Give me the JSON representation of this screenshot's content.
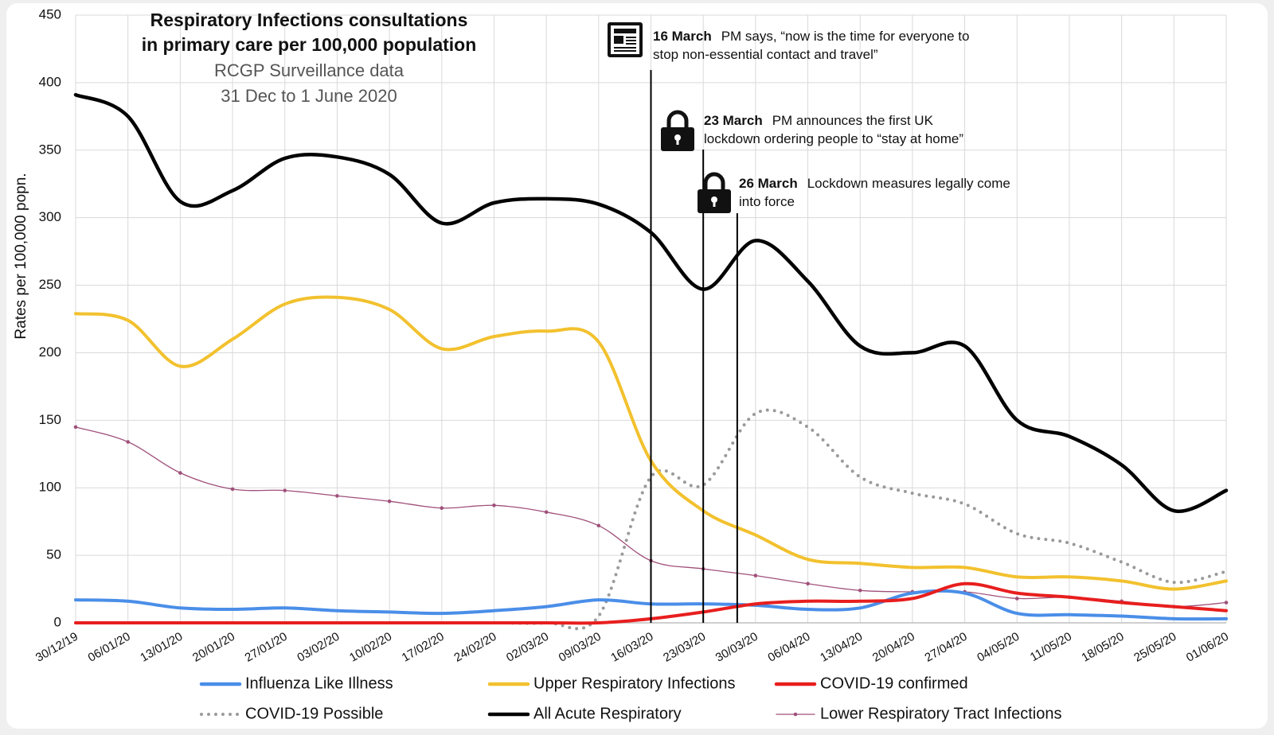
{
  "chart_data": {
    "type": "line",
    "title": "Respiratory Infections consultations",
    "title_line2": "in primary care per 100,000 population",
    "subtitle": "RCGP Surveillance data",
    "subtitle_line2": "31 Dec to 1 June 2020",
    "ylabel": "Rates per 100,000 popn.",
    "xlabel": "",
    "ylim": [
      0,
      450
    ],
    "yticks": [
      "0",
      "50",
      "100",
      "150",
      "200",
      "250",
      "300",
      "350",
      "400",
      "450"
    ],
    "grid": true,
    "legend_position": "bottom",
    "x": [
      "30/12/19",
      "06/01/20",
      "13/01/20",
      "20/01/20",
      "27/01/20",
      "03/02/20",
      "10/02/20",
      "17/02/20",
      "24/02/20",
      "02/03/20",
      "09/03/20",
      "16/03/20",
      "23/03/20",
      "30/03/20",
      "06/04/20",
      "13/04/20",
      "20/04/20",
      "27/04/20",
      "04/05/20",
      "11/05/20",
      "18/05/20",
      "25/05/20",
      "01/06/20"
    ],
    "series": [
      {
        "name": "Influenza Like Illness",
        "color": "#4a8ee8",
        "style": "solid",
        "values": [
          17,
          16,
          11,
          10,
          11,
          9,
          8,
          7,
          9,
          12,
          17,
          14,
          14,
          13,
          10,
          11,
          22,
          22,
          7,
          6,
          5,
          3,
          3
        ]
      },
      {
        "name": "Upper Respiratory Infections",
        "color": "#f2c12e",
        "style": "solid",
        "values": [
          229,
          224,
          190,
          210,
          236,
          241,
          232,
          203,
          212,
          216,
          208,
          120,
          83,
          65,
          47,
          44,
          41,
          41,
          34,
          34,
          31,
          25,
          31
        ]
      },
      {
        "name": "COVID-19 confirmed",
        "color": "#e81e1e",
        "style": "solid",
        "values": [
          0,
          0,
          0,
          0,
          0,
          0,
          0,
          0,
          0,
          0,
          0,
          3,
          8,
          14,
          16,
          16,
          18,
          29,
          22,
          19,
          15,
          12,
          9
        ]
      },
      {
        "name": "COVID-19 Possible",
        "color": "#9a9a9a",
        "style": "dotted",
        "values": [
          0,
          0,
          0,
          0,
          0,
          0,
          0,
          0,
          0,
          0,
          5,
          108,
          102,
          155,
          145,
          108,
          96,
          88,
          66,
          59,
          45,
          30,
          38
        ]
      },
      {
        "name": "All Acute Respiratory",
        "color": "#000000",
        "style": "solid",
        "values": [
          391,
          375,
          312,
          320,
          344,
          345,
          332,
          296,
          311,
          314,
          310,
          289,
          247,
          283,
          253,
          205,
          200,
          205,
          150,
          138,
          117,
          83,
          98
        ]
      },
      {
        "name": "Lower Respiratory Tract Infections",
        "color": "#a0507a",
        "style": "marker",
        "values": [
          145,
          134,
          111,
          99,
          98,
          94,
          90,
          85,
          87,
          82,
          72,
          46,
          40,
          35,
          29,
          24,
          23,
          23,
          18,
          19,
          16,
          12,
          15
        ]
      }
    ],
    "events": [
      {
        "x": 11.0,
        "date": "16 March",
        "text": "PM says, “now is the time for everyone to",
        "text2": "stop non-essential contact and travel”",
        "icon": "newspaper-icon"
      },
      {
        "x": 12.0,
        "date": "23 March",
        "text": "PM announces the first UK",
        "text2": "lockdown ordering people to “stay at home”",
        "icon": "lock-icon"
      },
      {
        "x": 12.65,
        "date": "26 March",
        "text": "Lockdown measures legally come",
        "text2": "into force",
        "icon": "lock-icon"
      }
    ]
  }
}
